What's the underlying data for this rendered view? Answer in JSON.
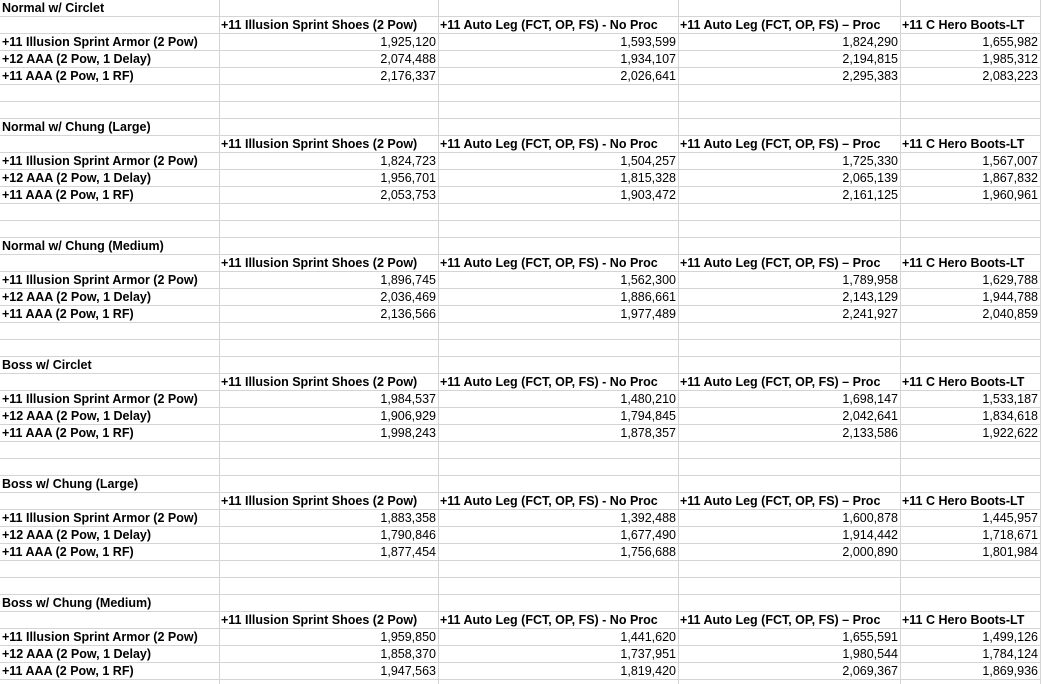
{
  "sheet": {
    "blocks": [
      {
        "title": "Normal w/ Circlet",
        "headers": [
          "+11 Illusion Sprint Shoes (2 Pow)",
          "+11 Auto Leg (FCT, OP, FS) - No Proc",
          "+11 Auto Leg (FCT, OP, FS) – Proc",
          "+11 C Hero Boots-LT"
        ],
        "rows": [
          {
            "label": "+11 Illusion Sprint Armor (2 Pow)",
            "values": [
              "1,925,120",
              "1,593,599",
              "1,824,290",
              "1,655,982"
            ]
          },
          {
            "label": "+12 AAA (2 Pow, 1 Delay)",
            "values": [
              "2,074,488",
              "1,934,107",
              "2,194,815",
              "1,985,312"
            ]
          },
          {
            "label": "+11 AAA (2 Pow, 1 RF)",
            "values": [
              "2,176,337",
              "2,026,641",
              "2,295,383",
              "2,083,223"
            ]
          }
        ]
      },
      {
        "title": "Normal w/ Chung (Large)",
        "headers": [
          "+11 Illusion Sprint Shoes (2 Pow)",
          "+11 Auto Leg (FCT, OP, FS) - No Proc",
          "+11 Auto Leg (FCT, OP, FS) – Proc",
          "+11 C Hero Boots-LT"
        ],
        "rows": [
          {
            "label": "+11 Illusion Sprint Armor (2 Pow)",
            "values": [
              "1,824,723",
              "1,504,257",
              "1,725,330",
              "1,567,007"
            ]
          },
          {
            "label": "+12 AAA (2 Pow, 1 Delay)",
            "values": [
              "1,956,701",
              "1,815,328",
              "2,065,139",
              "1,867,832"
            ]
          },
          {
            "label": "+11 AAA (2 Pow, 1 RF)",
            "values": [
              "2,053,753",
              "1,903,472",
              "2,161,125",
              "1,960,961"
            ]
          }
        ]
      },
      {
        "title": "Normal w/ Chung (Medium)",
        "headers": [
          "+11 Illusion Sprint Shoes (2 Pow)",
          "+11 Auto Leg (FCT, OP, FS) - No Proc",
          "+11 Auto Leg (FCT, OP, FS) – Proc",
          "+11 C Hero Boots-LT"
        ],
        "rows": [
          {
            "label": "+11 Illusion Sprint Armor (2 Pow)",
            "values": [
              "1,896,745",
              "1,562,300",
              "1,789,958",
              "1,629,788"
            ]
          },
          {
            "label": "+12 AAA (2 Pow, 1 Delay)",
            "values": [
              "2,036,469",
              "1,886,661",
              "2,143,129",
              "1,944,788"
            ]
          },
          {
            "label": "+11 AAA (2 Pow, 1 RF)",
            "values": [
              "2,136,566",
              "1,977,489",
              "2,241,927",
              "2,040,859"
            ]
          }
        ]
      },
      {
        "title": "Boss w/ Circlet",
        "headers": [
          "+11 Illusion Sprint Shoes (2 Pow)",
          "+11 Auto Leg (FCT, OP, FS) - No Proc",
          "+11 Auto Leg (FCT, OP, FS) – Proc",
          "+11 C Hero Boots-LT"
        ],
        "rows": [
          {
            "label": "+11 Illusion Sprint Armor (2 Pow)",
            "values": [
              "1,984,537",
              "1,480,210",
              "1,698,147",
              "1,533,187"
            ]
          },
          {
            "label": "+12 AAA (2 Pow, 1 Delay)",
            "values": [
              "1,906,929",
              "1,794,845",
              "2,042,641",
              "1,834,618"
            ]
          },
          {
            "label": "+11 AAA (2 Pow, 1 RF)",
            "values": [
              "1,998,243",
              "1,878,357",
              "2,133,586",
              "1,922,622"
            ]
          }
        ]
      },
      {
        "title": "Boss w/ Chung (Large)",
        "headers": [
          "+11 Illusion Sprint Shoes (2 Pow)",
          "+11 Auto Leg (FCT, OP, FS) - No Proc",
          "+11 Auto Leg (FCT, OP, FS) – Proc",
          "+11 C Hero Boots-LT"
        ],
        "rows": [
          {
            "label": "+11 Illusion Sprint Armor (2 Pow)",
            "values": [
              "1,883,358",
              "1,392,488",
              "1,600,878",
              "1,445,957"
            ]
          },
          {
            "label": "+12 AAA (2 Pow, 1 Delay)",
            "values": [
              "1,790,846",
              "1,677,490",
              "1,914,442",
              "1,718,671"
            ]
          },
          {
            "label": "+11 AAA (2 Pow, 1 RF)",
            "values": [
              "1,877,454",
              "1,756,688",
              "2,000,890",
              "1,801,984"
            ]
          }
        ]
      },
      {
        "title": "Boss w/ Chung (Medium)",
        "headers": [
          "+11 Illusion Sprint Shoes (2 Pow)",
          "+11 Auto Leg (FCT, OP, FS) - No Proc",
          "+11 Auto Leg (FCT, OP, FS) – Proc",
          "+11 C Hero Boots-LT"
        ],
        "rows": [
          {
            "label": "+11 Illusion Sprint Armor (2 Pow)",
            "values": [
              "1,959,850",
              "1,441,620",
              "1,655,591",
              "1,499,126"
            ]
          },
          {
            "label": "+12 AAA (2 Pow, 1 Delay)",
            "values": [
              "1,858,370",
              "1,737,951",
              "1,980,544",
              "1,784,124"
            ]
          },
          {
            "label": "+11 AAA (2 Pow, 1 RF)",
            "values": [
              "1,947,563",
              "1,819,420",
              "2,069,367",
              "1,869,936"
            ]
          }
        ]
      }
    ]
  }
}
